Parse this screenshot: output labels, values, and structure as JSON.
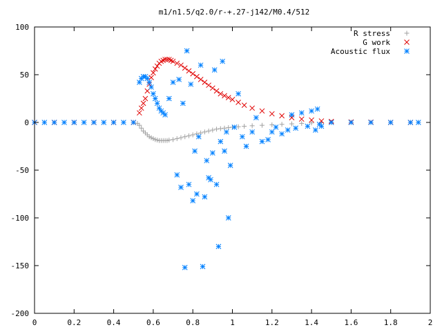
{
  "chart_data": {
    "type": "scatter",
    "title": "m1/n1.5/q2.0/r-+.27-j142/M0.4/512",
    "xlabel": "",
    "ylabel": "",
    "xlim": [
      0,
      2
    ],
    "ylim": [
      -200,
      100
    ],
    "x_ticks": [
      "0",
      "0.2",
      "0.4",
      "0.6",
      "0.8",
      "1",
      "1.2",
      "1.4",
      "1.6",
      "1.8",
      "2"
    ],
    "y_ticks": [
      "100",
      "50",
      "0",
      "-50",
      "-100",
      "-150",
      "-200"
    ],
    "grid": false,
    "legend_position": "top-right",
    "series": [
      {
        "name": "R stress",
        "marker": "plus",
        "color": "#a0a0a0",
        "x": [
          0.0,
          0.05,
          0.1,
          0.15,
          0.2,
          0.25,
          0.3,
          0.35,
          0.4,
          0.45,
          0.5,
          0.52,
          0.53,
          0.54,
          0.55,
          0.56,
          0.57,
          0.58,
          0.59,
          0.6,
          0.61,
          0.62,
          0.63,
          0.64,
          0.65,
          0.66,
          0.67,
          0.68,
          0.7,
          0.72,
          0.74,
          0.76,
          0.78,
          0.8,
          0.82,
          0.84,
          0.86,
          0.88,
          0.9,
          0.92,
          0.94,
          0.96,
          0.98,
          1.0,
          1.03,
          1.06,
          1.1,
          1.15,
          1.2,
          1.25,
          1.3,
          1.35,
          1.4,
          1.45,
          1.5,
          1.6,
          1.7,
          1.8,
          1.9,
          1.94
        ],
        "y": [
          0,
          0,
          0,
          0,
          0,
          0,
          0,
          0,
          0,
          0,
          0,
          -1,
          -3,
          -6,
          -9,
          -11,
          -13,
          -15,
          -16,
          -17,
          -18,
          -18.5,
          -19,
          -19,
          -19,
          -19,
          -19,
          -18.5,
          -18,
          -17,
          -16,
          -15,
          -14,
          -13,
          -12,
          -11,
          -10,
          -9,
          -8,
          -7,
          -6.5,
          -6,
          -5.5,
          -5,
          -4.5,
          -4,
          -3.5,
          -3,
          -2.5,
          -2,
          -1.5,
          -1,
          -0.5,
          -0.3,
          0,
          0,
          0,
          0,
          0,
          0
        ]
      },
      {
        "name": "G work",
        "marker": "cross",
        "color": "#e00000",
        "x": [
          0.0,
          0.1,
          0.2,
          0.3,
          0.4,
          0.5,
          0.53,
          0.54,
          0.55,
          0.56,
          0.57,
          0.58,
          0.59,
          0.6,
          0.61,
          0.62,
          0.63,
          0.64,
          0.65,
          0.66,
          0.67,
          0.68,
          0.69,
          0.7,
          0.72,
          0.74,
          0.76,
          0.78,
          0.8,
          0.82,
          0.84,
          0.86,
          0.88,
          0.9,
          0.92,
          0.94,
          0.96,
          0.98,
          1.0,
          1.03,
          1.06,
          1.1,
          1.15,
          1.2,
          1.25,
          1.3,
          1.35,
          1.4,
          1.45,
          1.5,
          1.6,
          1.7,
          1.8,
          1.9
        ],
        "y": [
          0,
          0,
          0,
          0,
          0,
          0,
          10,
          15,
          20,
          25,
          33,
          40,
          47,
          52,
          56,
          59,
          62,
          64,
          65,
          66,
          66,
          66,
          65,
          64,
          62,
          60,
          57,
          54,
          51,
          48,
          45,
          42,
          39,
          36,
          33,
          30,
          28,
          26,
          24,
          21,
          18,
          15,
          12,
          9,
          7,
          5,
          3.5,
          2.5,
          1.5,
          1,
          0.5,
          0.3,
          0,
          0
        ]
      },
      {
        "name": "Acoustic flux",
        "marker": "star",
        "color": "#0080ff",
        "x": [
          0.0,
          0.05,
          0.1,
          0.15,
          0.2,
          0.25,
          0.3,
          0.35,
          0.4,
          0.45,
          0.5,
          0.53,
          0.54,
          0.55,
          0.56,
          0.57,
          0.58,
          0.59,
          0.6,
          0.61,
          0.62,
          0.63,
          0.64,
          0.65,
          0.66,
          0.68,
          0.7,
          0.72,
          0.74,
          0.76,
          0.77,
          0.78,
          0.8,
          0.82,
          0.84,
          0.85,
          0.86,
          0.88,
          0.9,
          0.92,
          0.93,
          0.95,
          0.96,
          0.98,
          0.73,
          0.75,
          0.79,
          0.81,
          0.83,
          0.87,
          0.89,
          0.91,
          0.94,
          0.97,
          0.99,
          1.01,
          1.03,
          1.05,
          1.07,
          1.1,
          1.12,
          1.15,
          1.18,
          1.2,
          1.22,
          1.25,
          1.28,
          1.3,
          1.32,
          1.35,
          1.38,
          1.4,
          1.42,
          1.43,
          1.44,
          1.45,
          1.5,
          1.6,
          1.7,
          1.8,
          1.9,
          1.94
        ],
        "y": [
          0,
          0,
          0,
          0,
          0,
          0,
          0,
          0,
          0,
          0,
          0,
          42,
          46,
          48,
          48,
          46,
          42,
          37,
          30,
          25,
          20,
          15,
          12,
          10,
          8,
          25,
          42,
          -55,
          -68,
          -152,
          75,
          -65,
          -82,
          -75,
          60,
          -151,
          -78,
          -58,
          -32,
          -65,
          -130,
          64,
          -30,
          -100,
          45,
          20,
          40,
          -30,
          -15,
          -40,
          -60,
          55,
          -20,
          -10,
          -45,
          -5,
          30,
          -15,
          -25,
          -10,
          5,
          -20,
          -18,
          -10,
          -5,
          -12,
          -8,
          8,
          -6,
          10,
          -4,
          12,
          -8,
          14,
          -2,
          -4,
          0,
          0,
          0,
          0,
          0,
          0
        ]
      }
    ]
  }
}
